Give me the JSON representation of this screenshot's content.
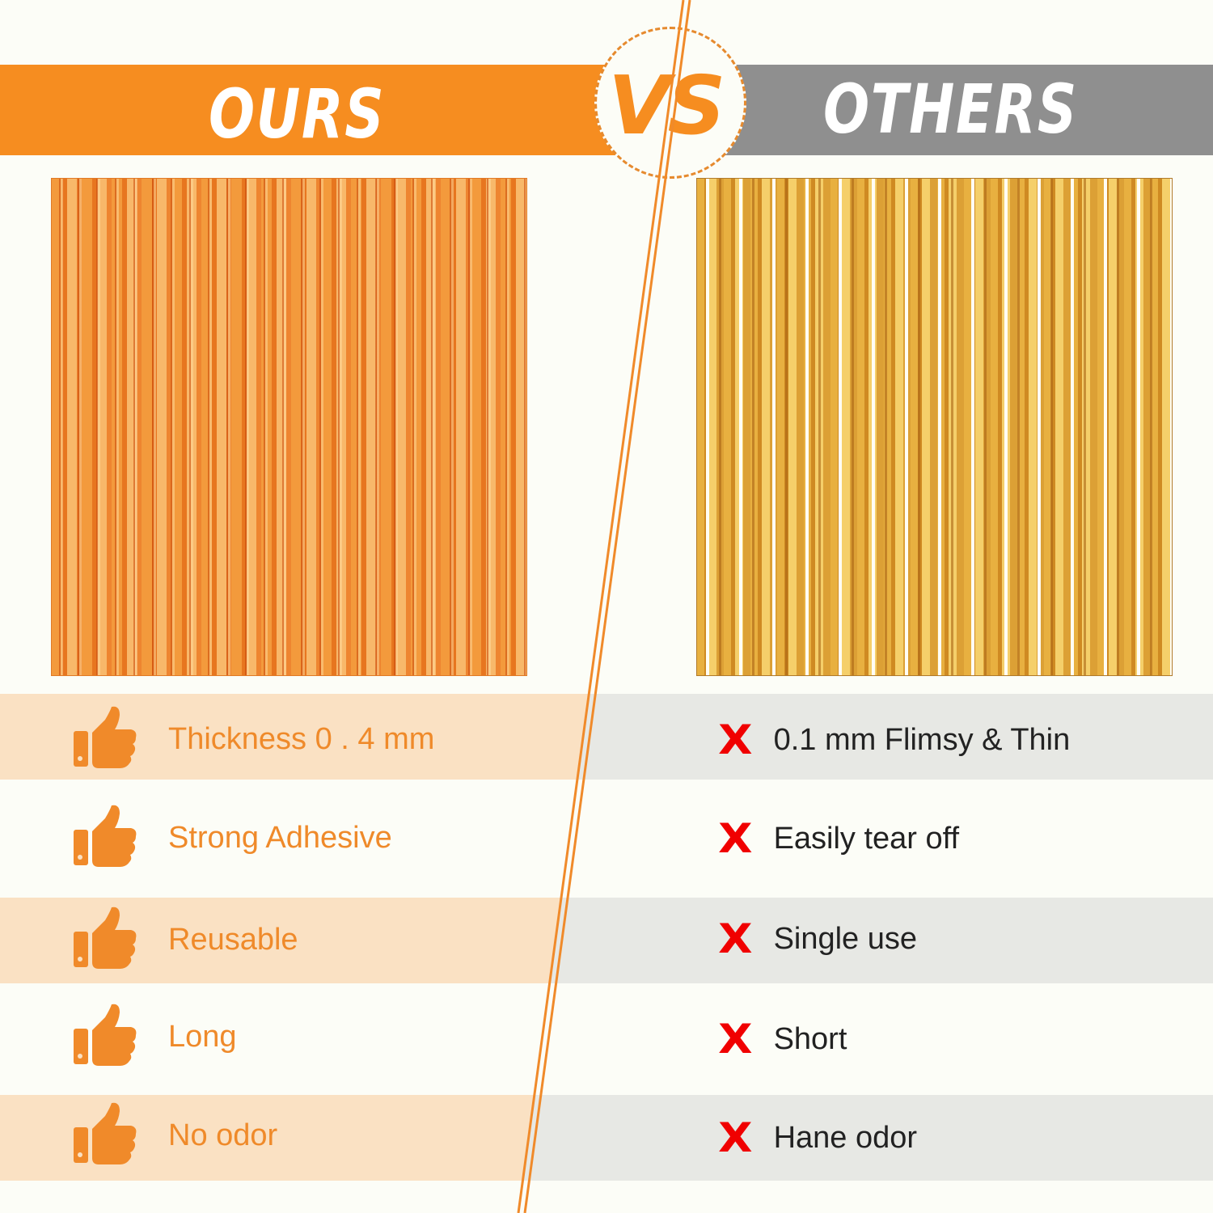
{
  "header": {
    "ours": "OURS",
    "vs": "VS",
    "others": "OTHERS"
  },
  "colors": {
    "ours_accent": "#f68d20",
    "others_gray": "#8f8f8f",
    "ours_band": "#fae1c3",
    "others_band": "#e7e8e4",
    "cross": "#f00000"
  },
  "ours": {
    "image": "orange-foil-fringe-curtain",
    "icon": "thumbs-up-icon",
    "items": [
      "Thickness 0 . 4 mm",
      "Strong Adhesive",
      "Reusable",
      "Long",
      "No odor"
    ]
  },
  "others": {
    "image": "gold-foil-fringe-curtain",
    "icon": "cross-icon",
    "items": [
      "0.1 mm Flimsy & Thin",
      "Easily tear off",
      "Single use",
      "Short",
      "Hane odor"
    ]
  }
}
